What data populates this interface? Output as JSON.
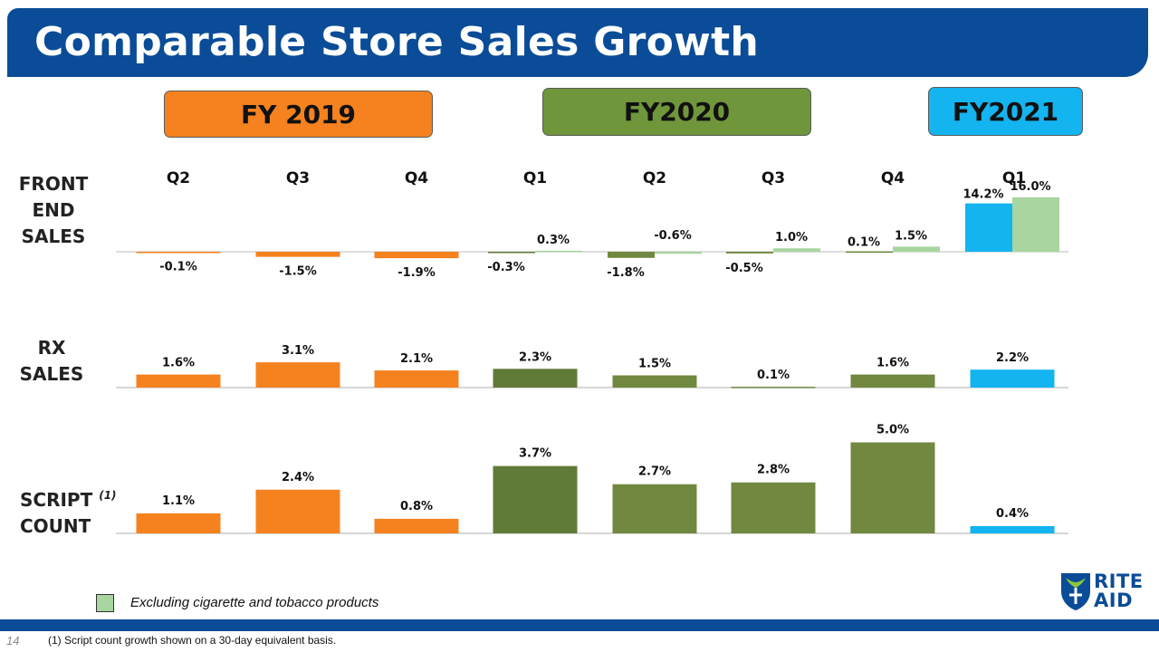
{
  "title": "Comparable Store Sales Growth",
  "fiscal_years": [
    {
      "label": "FY 2019",
      "color": "#f5821f"
    },
    {
      "label": "FY2020",
      "color": "#70963b"
    },
    {
      "label": "FY2021",
      "color": "#14b4f0"
    }
  ],
  "row_labels": {
    "front_end": [
      "FRONT",
      "END",
      "SALES"
    ],
    "rx": [
      "RX",
      "SALES"
    ],
    "script": [
      "SCRIPT",
      "COUNT"
    ],
    "script_note": "(1)"
  },
  "legend": {
    "label": "Excluding cigarette and tobacco products",
    "color": "#a8d5a0"
  },
  "footnote": "(1) Script count growth shown on a 30-day equivalent basis.",
  "page_number": "14",
  "logo": {
    "line1": "RITE",
    "line2": "AID"
  },
  "chart_data": [
    {
      "type": "bar",
      "name": "FRONT END SALES",
      "categories": [
        "Q2",
        "Q3",
        "Q4",
        "Q1",
        "Q2",
        "Q3",
        "Q4",
        "Q1"
      ],
      "fiscal_year": [
        "FY 2019",
        "FY 2019",
        "FY 2019",
        "FY2020",
        "FY2020",
        "FY2020",
        "FY2020",
        "FY2021"
      ],
      "values": [
        -0.1,
        -1.5,
        -1.9,
        -0.3,
        -1.8,
        -0.5,
        0.1,
        14.2
      ],
      "labels": [
        "-0.1%",
        "-1.5%",
        "-1.9%",
        "-0.3%",
        "-1.8%",
        "-0.5%",
        "0.1%",
        "14.2%"
      ],
      "excluding_tobacco": [
        null,
        null,
        null,
        0.3,
        -0.6,
        1.0,
        1.5,
        16.0
      ],
      "excluding_tobacco_labels": [
        null,
        null,
        null,
        "0.3%",
        "-0.6%",
        "1.0%",
        "1.5%",
        "16.0%"
      ]
    },
    {
      "type": "bar",
      "name": "RX SALES",
      "categories": [
        "Q2",
        "Q3",
        "Q4",
        "Q1",
        "Q2",
        "Q3",
        "Q4",
        "Q1"
      ],
      "values": [
        1.6,
        3.1,
        2.1,
        2.3,
        1.5,
        0.1,
        1.6,
        2.2
      ],
      "labels": [
        "1.6%",
        "3.1%",
        "2.1%",
        "2.3%",
        "1.5%",
        "0.1%",
        "1.6%",
        "2.2%"
      ]
    },
    {
      "type": "bar",
      "name": "SCRIPT COUNT",
      "categories": [
        "Q2",
        "Q3",
        "Q4",
        "Q1",
        "Q2",
        "Q3",
        "Q4",
        "Q1"
      ],
      "values": [
        1.1,
        2.4,
        0.8,
        3.7,
        2.7,
        2.8,
        5.0,
        0.4
      ],
      "labels": [
        "1.1%",
        "2.4%",
        "0.8%",
        "3.7%",
        "2.7%",
        "2.8%",
        "5.0%",
        "0.4%"
      ]
    }
  ],
  "colors": {
    "fy2019": "#f5821f",
    "fy2020": "#70883f",
    "fy2020_dark": "#607a38",
    "fy2021": "#14b4f0",
    "excluding_tobacco": "#a8d5a0",
    "brand_blue": "#0a4c97"
  }
}
